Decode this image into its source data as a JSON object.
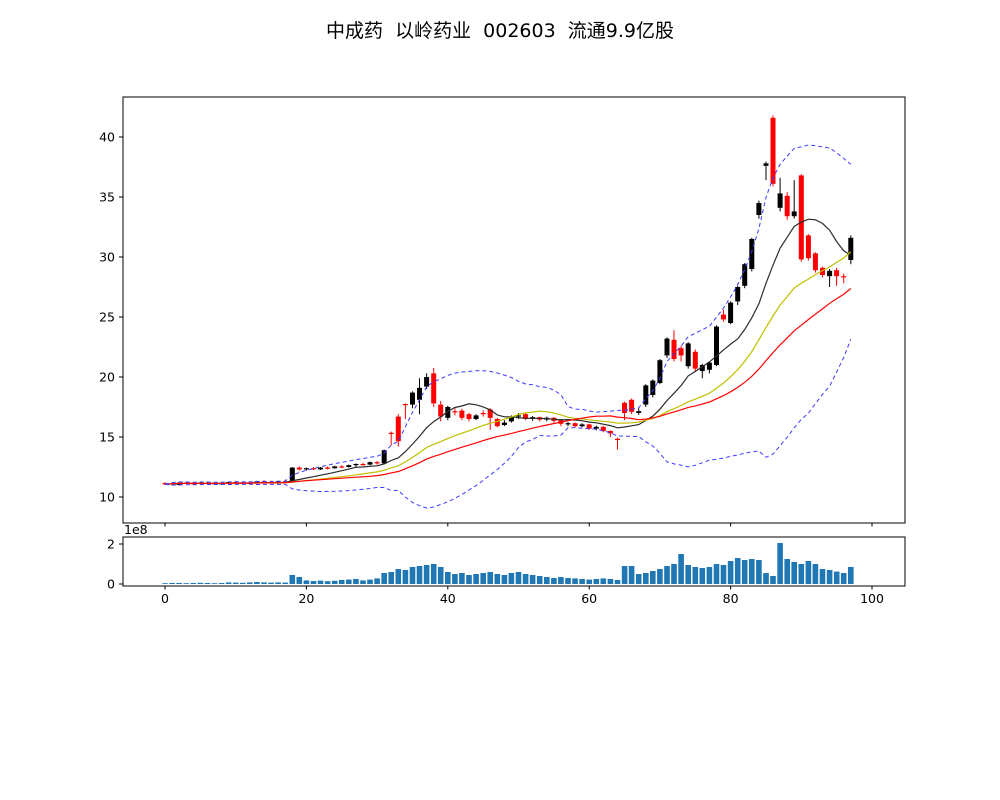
{
  "title": "中成药  以岭药业  002603  流通9.9亿股",
  "chart_data": {
    "type": "candlestick",
    "title": "中成药  以岭药业  002603  流通9.9亿股",
    "x_start": 0,
    "x_step": 1,
    "ohlc": [
      [
        11.15,
        11.25,
        11.0,
        11.05
      ],
      [
        11.05,
        11.2,
        10.95,
        11.15
      ],
      [
        11.0,
        11.25,
        10.95,
        11.2
      ],
      [
        11.2,
        11.3,
        11.1,
        11.15
      ],
      [
        11.15,
        11.2,
        11.0,
        11.1
      ],
      [
        11.1,
        11.25,
        11.05,
        11.2
      ],
      [
        11.2,
        11.3,
        11.1,
        11.15
      ],
      [
        11.15,
        11.25,
        11.05,
        11.1
      ],
      [
        11.1,
        11.2,
        11.0,
        11.15
      ],
      [
        11.15,
        11.3,
        11.1,
        11.25
      ],
      [
        11.25,
        11.35,
        11.15,
        11.2
      ],
      [
        11.2,
        11.3,
        11.1,
        11.15
      ],
      [
        11.15,
        11.25,
        11.05,
        11.2
      ],
      [
        11.2,
        11.35,
        11.15,
        11.3
      ],
      [
        11.3,
        11.4,
        11.2,
        11.25
      ],
      [
        11.25,
        11.35,
        11.15,
        11.2
      ],
      [
        11.2,
        11.35,
        11.1,
        11.3
      ],
      [
        11.3,
        11.45,
        11.2,
        11.25
      ],
      [
        11.25,
        12.5,
        11.2,
        12.45
      ],
      [
        12.45,
        12.55,
        12.2,
        12.3
      ],
      [
        12.3,
        12.45,
        12.2,
        12.4
      ],
      [
        12.4,
        12.5,
        12.25,
        12.3
      ],
      [
        12.3,
        12.5,
        12.25,
        12.45
      ],
      [
        12.45,
        12.55,
        12.3,
        12.4
      ],
      [
        12.4,
        12.6,
        12.35,
        12.55
      ],
      [
        12.55,
        12.65,
        12.4,
        12.5
      ],
      [
        12.5,
        12.7,
        12.45,
        12.65
      ],
      [
        12.65,
        12.8,
        12.5,
        12.75
      ],
      [
        12.75,
        12.85,
        12.6,
        12.7
      ],
      [
        12.7,
        12.95,
        12.65,
        12.9
      ],
      [
        12.9,
        13.0,
        12.7,
        12.8
      ],
      [
        12.8,
        13.95,
        12.75,
        13.9
      ],
      [
        15.35,
        15.45,
        14.3,
        15.3
      ],
      [
        16.7,
        16.9,
        14.2,
        14.65
      ],
      [
        17.75,
        17.8,
        16.5,
        17.7
      ],
      [
        17.7,
        18.8,
        17.4,
        18.7
      ],
      [
        18.1,
        19.9,
        16.9,
        19.1
      ],
      [
        19.2,
        20.3,
        19.0,
        20.0
      ],
      [
        20.3,
        20.75,
        17.5,
        17.8
      ],
      [
        17.7,
        18.0,
        16.3,
        16.7
      ],
      [
        16.6,
        17.6,
        16.4,
        17.5
      ],
      [
        17.15,
        17.4,
        16.8,
        17.1
      ],
      [
        17.2,
        17.35,
        16.4,
        16.6
      ],
      [
        16.9,
        17.0,
        16.3,
        16.5
      ],
      [
        16.5,
        16.9,
        16.4,
        16.8
      ],
      [
        17.0,
        17.2,
        16.7,
        16.95
      ],
      [
        17.3,
        17.4,
        15.6,
        16.6
      ],
      [
        16.5,
        16.6,
        15.8,
        15.9
      ],
      [
        16.0,
        16.4,
        15.9,
        16.2
      ],
      [
        16.3,
        16.8,
        16.2,
        16.7
      ],
      [
        16.7,
        17.0,
        16.5,
        16.8
      ],
      [
        16.9,
        17.0,
        16.4,
        16.5
      ],
      [
        16.5,
        16.75,
        16.35,
        16.65
      ],
      [
        16.65,
        16.7,
        16.3,
        16.45
      ],
      [
        16.45,
        16.7,
        16.3,
        16.6
      ],
      [
        16.6,
        16.65,
        16.2,
        16.35
      ],
      [
        16.4,
        16.5,
        15.9,
        16.1
      ],
      [
        16.1,
        16.25,
        15.9,
        16.15
      ],
      [
        16.15,
        16.2,
        15.8,
        15.9
      ],
      [
        15.9,
        16.15,
        15.8,
        16.05
      ],
      [
        16.05,
        16.1,
        15.6,
        15.7
      ],
      [
        15.7,
        15.95,
        15.55,
        15.85
      ],
      [
        15.85,
        15.9,
        15.4,
        15.5
      ],
      [
        15.5,
        15.55,
        15.0,
        15.3
      ],
      [
        14.85,
        14.95,
        13.95,
        14.8
      ],
      [
        17.85,
        17.95,
        16.4,
        17.0
      ],
      [
        18.1,
        18.2,
        16.9,
        17.1
      ],
      [
        17.0,
        17.4,
        16.85,
        17.15
      ],
      [
        17.7,
        19.4,
        17.5,
        19.3
      ],
      [
        18.5,
        19.8,
        18.3,
        19.7
      ],
      [
        19.5,
        21.5,
        19.4,
        21.4
      ],
      [
        21.8,
        23.3,
        21.6,
        23.2
      ],
      [
        23.1,
        23.9,
        21.3,
        21.5
      ],
      [
        22.4,
        22.6,
        21.3,
        21.8
      ],
      [
        20.9,
        22.9,
        20.7,
        22.8
      ],
      [
        22.1,
        22.3,
        20.4,
        20.7
      ],
      [
        20.5,
        21.1,
        19.9,
        21.0
      ],
      [
        20.6,
        21.3,
        20.3,
        21.2
      ],
      [
        21.0,
        24.3,
        20.9,
        24.2
      ],
      [
        25.2,
        25.6,
        24.6,
        24.8
      ],
      [
        24.5,
        26.3,
        24.4,
        26.2
      ],
      [
        26.3,
        27.6,
        26.0,
        27.5
      ],
      [
        27.6,
        29.5,
        27.4,
        29.4
      ],
      [
        29.0,
        31.6,
        28.8,
        31.5
      ],
      [
        33.5,
        34.7,
        33.2,
        34.5
      ],
      [
        37.6,
        37.95,
        36.4,
        37.8
      ],
      [
        41.6,
        41.8,
        35.9,
        36.1
      ],
      [
        34.1,
        36.6,
        33.8,
        35.3
      ],
      [
        35.1,
        35.4,
        33.1,
        33.4
      ],
      [
        33.4,
        36.4,
        33.2,
        33.8
      ],
      [
        36.8,
        36.9,
        29.6,
        29.8
      ],
      [
        31.8,
        31.9,
        29.7,
        29.9
      ],
      [
        30.3,
        30.4,
        28.7,
        28.9
      ],
      [
        29.1,
        29.2,
        28.3,
        28.5
      ],
      [
        28.4,
        29.0,
        27.5,
        28.85
      ],
      [
        28.9,
        29.1,
        27.6,
        28.4
      ],
      [
        28.4,
        28.6,
        27.8,
        28.3
      ],
      [
        29.75,
        31.8,
        29.4,
        31.6
      ]
    ],
    "volume": [
      0.04,
      0.05,
      0.05,
      0.04,
      0.05,
      0.06,
      0.05,
      0.04,
      0.05,
      0.08,
      0.07,
      0.06,
      0.08,
      0.1,
      0.08,
      0.07,
      0.08,
      0.07,
      0.45,
      0.35,
      0.18,
      0.15,
      0.17,
      0.14,
      0.16,
      0.2,
      0.22,
      0.25,
      0.18,
      0.22,
      0.28,
      0.55,
      0.6,
      0.75,
      0.7,
      0.85,
      0.9,
      0.95,
      1.0,
      0.85,
      0.6,
      0.5,
      0.55,
      0.45,
      0.5,
      0.55,
      0.6,
      0.5,
      0.45,
      0.55,
      0.6,
      0.5,
      0.45,
      0.4,
      0.35,
      0.3,
      0.35,
      0.3,
      0.28,
      0.25,
      0.22,
      0.25,
      0.28,
      0.25,
      0.2,
      0.9,
      0.9,
      0.5,
      0.55,
      0.65,
      0.75,
      0.9,
      1.0,
      1.5,
      0.95,
      0.85,
      0.8,
      0.85,
      1.0,
      0.95,
      1.15,
      1.3,
      1.2,
      1.25,
      1.2,
      0.55,
      0.4,
      2.05,
      1.25,
      1.1,
      1.0,
      1.15,
      1.0,
      0.75,
      0.7,
      0.62,
      0.55,
      0.85
    ],
    "volume_unit": "1e8",
    "x_axis": {
      "ticks": [
        0,
        20,
        40,
        60,
        80,
        100
      ],
      "range": [
        -5.9,
        104.6
      ]
    },
    "price_axis": {
      "ticks": [
        10,
        15,
        20,
        25,
        30,
        35,
        40
      ],
      "range": [
        7.8,
        43.3
      ]
    },
    "volume_axis": {
      "ticks": [
        0,
        2
      ],
      "offset_label": "1e8",
      "range": [
        0,
        2.3
      ]
    },
    "overlays": {
      "ma": [
        {
          "name": "MA10",
          "window": 10,
          "color": "#2b2b2b"
        },
        {
          "name": "MA20",
          "window": 20,
          "color": "#bfbf00"
        },
        {
          "name": "MA30",
          "window": 30,
          "color": "#ff0000"
        }
      ],
      "bollinger": {
        "window": 20,
        "k": 2,
        "color": "#3b3bff",
        "style": "dashed"
      }
    },
    "colors": {
      "up": "#000000",
      "down": "#ff0000",
      "volume_bar": "#1f77b4",
      "background": "#ffffff",
      "axis": "#000000"
    },
    "grid": false,
    "legend": "none"
  }
}
